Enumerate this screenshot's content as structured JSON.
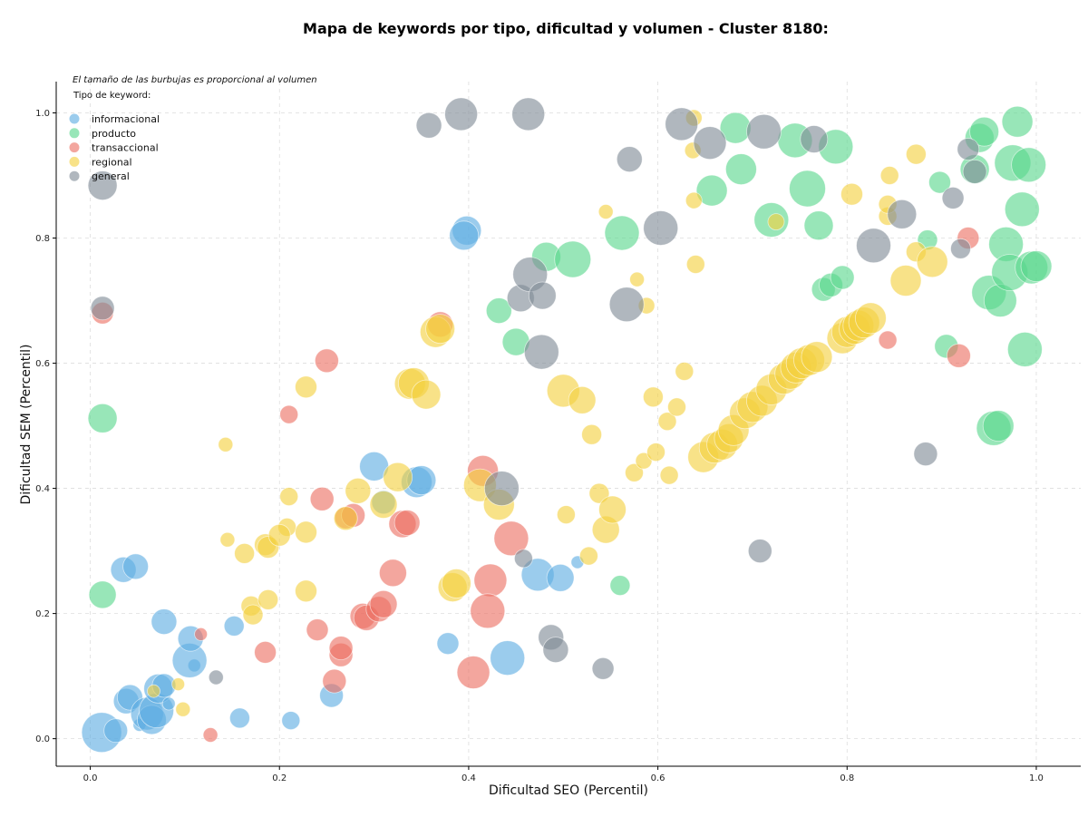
{
  "chart_data": {
    "type": "scatter",
    "title": "Mapa de keywords por tipo, dificultad y volumen - Cluster 8180:",
    "xlabel": "Dificultad SEO (Percentil)",
    "ylabel": "Dificultad SEM (Percentil)",
    "note": "El tamaño de las burbujas es proporcional al volumen",
    "legend_title": "Tipo de keyword:",
    "legend_placement": "top-left",
    "grid": true,
    "xlim": [
      -0.036,
      1.047
    ],
    "ylim": [
      -0.044,
      1.05
    ],
    "xticks": [
      "0.0",
      "0.2",
      "0.4",
      "0.6",
      "0.8",
      "1.0"
    ],
    "yticks": [
      "0.0",
      "0.2",
      "0.4",
      "0.6",
      "0.8",
      "1.0"
    ],
    "series": [
      {
        "name": "informacional",
        "color": "#5DADE2",
        "points": [
          [
            0.012,
            0.01,
            22
          ],
          [
            0.027,
            0.013,
            13
          ],
          [
            0.038,
            0.06,
            14
          ],
          [
            0.042,
            0.066,
            14
          ],
          [
            0.052,
            0.022,
            7
          ],
          [
            0.06,
            0.04,
            18
          ],
          [
            0.065,
            0.03,
            16
          ],
          [
            0.07,
            0.045,
            19
          ],
          [
            0.072,
            0.08,
            16
          ],
          [
            0.078,
            0.085,
            13
          ],
          [
            0.083,
            0.056,
            7
          ],
          [
            0.11,
            0.117,
            7
          ],
          [
            0.105,
            0.125,
            19
          ],
          [
            0.106,
            0.16,
            14
          ],
          [
            0.078,
            0.187,
            14
          ],
          [
            0.035,
            0.27,
            14
          ],
          [
            0.048,
            0.275,
            14
          ],
          [
            0.152,
            0.18,
            11
          ],
          [
            0.158,
            0.033,
            11
          ],
          [
            0.212,
            0.029,
            10
          ],
          [
            0.255,
            0.069,
            13
          ],
          [
            0.3,
            0.435,
            16
          ],
          [
            0.31,
            0.378,
            13
          ],
          [
            0.345,
            0.41,
            17
          ],
          [
            0.35,
            0.413,
            16
          ],
          [
            0.378,
            0.152,
            12
          ],
          [
            0.398,
            0.812,
            16
          ],
          [
            0.395,
            0.804,
            16
          ],
          [
            0.441,
            0.129,
            19
          ],
          [
            0.473,
            0.262,
            18
          ],
          [
            0.497,
            0.257,
            15
          ],
          [
            0.515,
            0.282,
            7
          ]
        ]
      },
      {
        "name": "producto",
        "color": "#58D68D",
        "points": [
          [
            0.013,
            0.512,
            16
          ],
          [
            0.013,
            0.23,
            15
          ],
          [
            0.432,
            0.684,
            14
          ],
          [
            0.45,
            0.634,
            15
          ],
          [
            0.482,
            0.77,
            16
          ],
          [
            0.51,
            0.766,
            20
          ],
          [
            0.56,
            0.245,
            11
          ],
          [
            0.562,
            0.808,
            19
          ],
          [
            0.657,
            0.876,
            17
          ],
          [
            0.682,
            0.976,
            17
          ],
          [
            0.688,
            0.91,
            17
          ],
          [
            0.72,
            0.829,
            19
          ],
          [
            0.745,
            0.956,
            19
          ],
          [
            0.758,
            0.879,
            20
          ],
          [
            0.77,
            0.82,
            16
          ],
          [
            0.788,
            0.946,
            19
          ],
          [
            0.775,
            0.718,
            13
          ],
          [
            0.783,
            0.725,
            13
          ],
          [
            0.795,
            0.737,
            13
          ],
          [
            0.885,
            0.797,
            11
          ],
          [
            0.898,
            0.889,
            12
          ],
          [
            0.905,
            0.627,
            13
          ],
          [
            0.935,
            0.91,
            16
          ],
          [
            0.94,
            0.96,
            16
          ],
          [
            0.945,
            0.97,
            16
          ],
          [
            0.95,
            0.713,
            19
          ],
          [
            0.955,
            0.496,
            19
          ],
          [
            0.96,
            0.5,
            17
          ],
          [
            0.962,
            0.7,
            18
          ],
          [
            0.968,
            0.79,
            19
          ],
          [
            0.972,
            0.745,
            20
          ],
          [
            0.975,
            0.92,
            20
          ],
          [
            0.98,
            0.986,
            17
          ],
          [
            0.985,
            0.846,
            19
          ],
          [
            0.988,
            0.622,
            19
          ],
          [
            0.992,
            0.917,
            19
          ],
          [
            0.995,
            0.753,
            18
          ],
          [
            1.0,
            0.755,
            17
          ]
        ]
      },
      {
        "name": "transaccional",
        "color": "#EC7063",
        "points": [
          [
            0.013,
            0.68,
            12
          ],
          [
            0.117,
            0.167,
            7
          ],
          [
            0.127,
            0.006,
            8
          ],
          [
            0.185,
            0.138,
            12
          ],
          [
            0.21,
            0.518,
            10
          ],
          [
            0.24,
            0.174,
            12
          ],
          [
            0.245,
            0.383,
            13
          ],
          [
            0.25,
            0.604,
            13
          ],
          [
            0.258,
            0.092,
            13
          ],
          [
            0.265,
            0.134,
            13
          ],
          [
            0.265,
            0.145,
            13
          ],
          [
            0.27,
            0.353,
            12
          ],
          [
            0.278,
            0.357,
            13
          ],
          [
            0.288,
            0.196,
            14
          ],
          [
            0.292,
            0.193,
            14
          ],
          [
            0.305,
            0.207,
            14
          ],
          [
            0.31,
            0.215,
            15
          ],
          [
            0.32,
            0.265,
            15
          ],
          [
            0.33,
            0.343,
            15
          ],
          [
            0.335,
            0.345,
            14
          ],
          [
            0.37,
            0.662,
            14
          ],
          [
            0.405,
            0.106,
            18
          ],
          [
            0.415,
            0.428,
            17
          ],
          [
            0.423,
            0.253,
            18
          ],
          [
            0.42,
            0.204,
            19
          ],
          [
            0.445,
            0.32,
            19
          ],
          [
            0.843,
            0.637,
            10
          ],
          [
            0.918,
            0.612,
            13
          ],
          [
            0.928,
            0.8,
            12
          ]
        ]
      },
      {
        "name": "regional",
        "color": "#F4D03F",
        "points": [
          [
            0.067,
            0.076,
            7
          ],
          [
            0.093,
            0.087,
            7
          ],
          [
            0.098,
            0.047,
            8
          ],
          [
            0.143,
            0.47,
            8
          ],
          [
            0.145,
            0.318,
            8
          ],
          [
            0.163,
            0.296,
            11
          ],
          [
            0.17,
            0.212,
            11
          ],
          [
            0.172,
            0.198,
            11
          ],
          [
            0.185,
            0.31,
            12
          ],
          [
            0.188,
            0.222,
            11
          ],
          [
            0.188,
            0.306,
            12
          ],
          [
            0.208,
            0.338,
            10
          ],
          [
            0.21,
            0.387,
            10
          ],
          [
            0.2,
            0.325,
            12
          ],
          [
            0.228,
            0.236,
            12
          ],
          [
            0.228,
            0.562,
            12
          ],
          [
            0.228,
            0.33,
            12
          ],
          [
            0.27,
            0.352,
            13
          ],
          [
            0.283,
            0.396,
            14
          ],
          [
            0.31,
            0.374,
            15
          ],
          [
            0.325,
            0.418,
            16
          ],
          [
            0.338,
            0.567,
            17
          ],
          [
            0.342,
            0.568,
            17
          ],
          [
            0.355,
            0.55,
            16
          ],
          [
            0.365,
            0.65,
            17
          ],
          [
            0.37,
            0.655,
            16
          ],
          [
            0.383,
            0.242,
            16
          ],
          [
            0.387,
            0.248,
            16
          ],
          [
            0.412,
            0.405,
            18
          ],
          [
            0.432,
            0.374,
            17
          ],
          [
            0.503,
            0.358,
            10
          ],
          [
            0.5,
            0.556,
            18
          ],
          [
            0.52,
            0.541,
            15
          ],
          [
            0.527,
            0.292,
            10
          ],
          [
            0.53,
            0.486,
            11
          ],
          [
            0.538,
            0.392,
            11
          ],
          [
            0.545,
            0.842,
            8
          ],
          [
            0.545,
            0.334,
            15
          ],
          [
            0.552,
            0.366,
            15
          ],
          [
            0.575,
            0.425,
            10
          ],
          [
            0.578,
            0.734,
            8
          ],
          [
            0.585,
            0.444,
            9
          ],
          [
            0.588,
            0.692,
            9
          ],
          [
            0.595,
            0.546,
            11
          ],
          [
            0.598,
            0.458,
            10
          ],
          [
            0.61,
            0.507,
            10
          ],
          [
            0.612,
            0.421,
            10
          ],
          [
            0.62,
            0.53,
            10
          ],
          [
            0.628,
            0.587,
            10
          ],
          [
            0.637,
            0.94,
            9
          ],
          [
            0.638,
            0.992,
            9
          ],
          [
            0.638,
            0.86,
            9
          ],
          [
            0.64,
            0.758,
            10
          ],
          [
            0.648,
            0.45,
            17
          ],
          [
            0.66,
            0.465,
            17
          ],
          [
            0.668,
            0.47,
            17
          ],
          [
            0.675,
            0.48,
            16
          ],
          [
            0.68,
            0.493,
            17
          ],
          [
            0.692,
            0.52,
            17
          ],
          [
            0.7,
            0.53,
            17
          ],
          [
            0.71,
            0.54,
            17
          ],
          [
            0.72,
            0.558,
            17
          ],
          [
            0.725,
            0.826,
            9
          ],
          [
            0.733,
            0.575,
            17
          ],
          [
            0.74,
            0.583,
            17
          ],
          [
            0.746,
            0.593,
            17
          ],
          [
            0.752,
            0.6,
            17
          ],
          [
            0.76,
            0.605,
            17
          ],
          [
            0.768,
            0.61,
            17
          ],
          [
            0.795,
            0.64,
            17
          ],
          [
            0.8,
            0.65,
            17
          ],
          [
            0.808,
            0.655,
            17
          ],
          [
            0.812,
            0.66,
            17
          ],
          [
            0.818,
            0.665,
            17
          ],
          [
            0.825,
            0.672,
            17
          ],
          [
            0.805,
            0.87,
            12
          ],
          [
            0.843,
            0.835,
            10
          ],
          [
            0.843,
            0.854,
            10
          ],
          [
            0.845,
            0.9,
            10
          ],
          [
            0.862,
            0.732,
            17
          ],
          [
            0.873,
            0.934,
            11
          ],
          [
            0.873,
            0.778,
            11
          ],
          [
            0.89,
            0.762,
            17
          ]
        ]
      },
      {
        "name": "general",
        "color": "#808B96",
        "points": [
          [
            0.013,
            0.884,
            16
          ],
          [
            0.013,
            0.688,
            13
          ],
          [
            0.133,
            0.098,
            8
          ],
          [
            0.358,
            0.98,
            14
          ],
          [
            0.392,
            0.998,
            18
          ],
          [
            0.455,
            0.704,
            15
          ],
          [
            0.463,
            0.998,
            18
          ],
          [
            0.465,
            0.742,
            19
          ],
          [
            0.477,
            0.618,
            19
          ],
          [
            0.478,
            0.708,
            15
          ],
          [
            0.435,
            0.4,
            19
          ],
          [
            0.458,
            0.288,
            10
          ],
          [
            0.487,
            0.162,
            14
          ],
          [
            0.492,
            0.142,
            14
          ],
          [
            0.542,
            0.112,
            12
          ],
          [
            0.567,
            0.694,
            19
          ],
          [
            0.57,
            0.926,
            14
          ],
          [
            0.603,
            0.816,
            19
          ],
          [
            0.625,
            0.982,
            18
          ],
          [
            0.655,
            0.952,
            18
          ],
          [
            0.712,
            0.97,
            19
          ],
          [
            0.708,
            0.3,
            13
          ],
          [
            0.765,
            0.958,
            15
          ],
          [
            0.828,
            0.788,
            19
          ],
          [
            0.858,
            0.838,
            16
          ],
          [
            0.883,
            0.455,
            13
          ],
          [
            0.912,
            0.864,
            12
          ],
          [
            0.92,
            0.783,
            11
          ],
          [
            0.928,
            0.942,
            12
          ],
          [
            0.935,
            0.906,
            13
          ]
        ]
      }
    ]
  }
}
